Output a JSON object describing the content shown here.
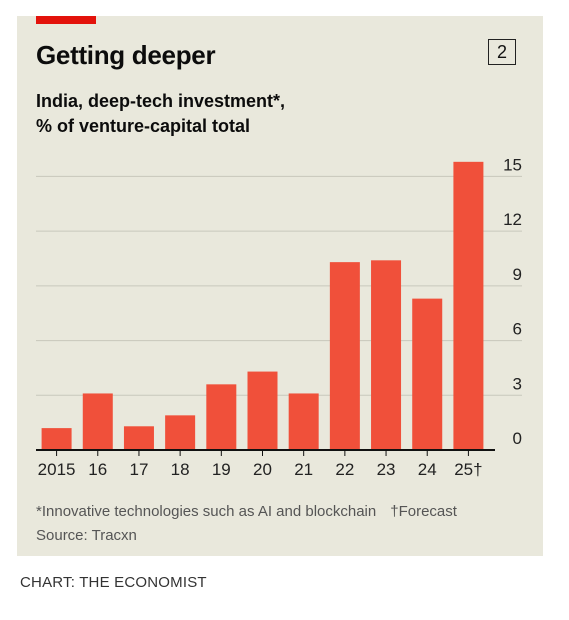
{
  "header": {
    "chart_number": "2",
    "title": "Getting deeper",
    "subtitle_line1": "India, deep-tech investment*,",
    "subtitle_line2": "% of venture-capital total"
  },
  "footnotes": {
    "note": "*Innovative technologies such as AI and blockchain",
    "forecast": "†Forecast",
    "source": "Source: Tracxn"
  },
  "credit": "CHART: THE ECONOMIST",
  "colors": {
    "bar": "#f0503a",
    "accent": "#e3120b",
    "background": "#e9e8dc",
    "gridline": "#c8c7bb",
    "axis": "#111111"
  },
  "chart_data": {
    "type": "bar",
    "title": "Getting deeper",
    "subtitle": "India, deep-tech investment*, % of venture-capital total",
    "categories": [
      "2015",
      "16",
      "17",
      "18",
      "19",
      "20",
      "21",
      "22",
      "23",
      "24",
      "25†"
    ],
    "values": [
      1.2,
      3.1,
      1.3,
      1.9,
      3.6,
      4.3,
      3.1,
      10.3,
      10.4,
      8.3,
      15.8
    ],
    "yticks": [
      0,
      3,
      6,
      9,
      12,
      15
    ],
    "ylim": [
      0,
      15.9
    ],
    "y_axis_position": "right",
    "grid": true,
    "xlabel": "",
    "ylabel": ""
  }
}
